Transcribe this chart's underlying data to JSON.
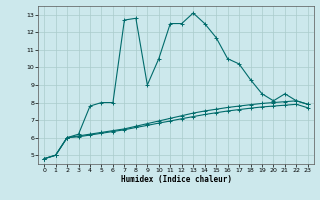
{
  "title": "",
  "xlabel": "Humidex (Indice chaleur)",
  "ylabel": "",
  "bg_color": "#cce8ec",
  "grid_color": "#aacccc",
  "line_color": "#006b6b",
  "xlim": [
    -0.5,
    23.5
  ],
  "ylim": [
    4.5,
    13.5
  ],
  "xticks": [
    0,
    1,
    2,
    3,
    4,
    5,
    6,
    7,
    8,
    9,
    10,
    11,
    12,
    13,
    14,
    15,
    16,
    17,
    18,
    19,
    20,
    21,
    22,
    23
  ],
  "yticks": [
    5,
    6,
    7,
    8,
    9,
    10,
    11,
    12,
    13
  ],
  "line1_x": [
    0,
    1,
    2,
    3,
    4,
    5,
    6,
    7,
    8,
    9,
    10,
    11,
    12,
    13,
    14,
    15,
    16,
    17,
    18,
    19,
    20,
    21,
    22,
    23
  ],
  "line1_y": [
    4.8,
    5.0,
    6.0,
    6.2,
    7.8,
    8.0,
    8.0,
    12.7,
    12.8,
    9.0,
    10.5,
    12.5,
    12.5,
    13.1,
    12.5,
    11.7,
    10.5,
    10.2,
    9.3,
    8.5,
    8.1,
    8.5,
    8.1,
    7.9
  ],
  "line2_x": [
    0,
    1,
    2,
    3,
    4,
    5,
    6,
    7,
    8,
    9,
    10,
    11,
    12,
    13,
    14,
    15,
    16,
    17,
    18,
    19,
    20,
    21,
    22,
    23
  ],
  "line2_y": [
    4.8,
    5.0,
    6.0,
    6.1,
    6.2,
    6.3,
    6.4,
    6.5,
    6.65,
    6.8,
    6.95,
    7.1,
    7.25,
    7.4,
    7.52,
    7.62,
    7.72,
    7.8,
    7.88,
    7.95,
    8.0,
    8.05,
    8.1,
    7.9
  ],
  "line3_x": [
    0,
    1,
    2,
    3,
    4,
    5,
    6,
    7,
    8,
    9,
    10,
    11,
    12,
    13,
    14,
    15,
    16,
    17,
    18,
    19,
    20,
    21,
    22,
    23
  ],
  "line3_y": [
    4.8,
    5.0,
    6.0,
    6.05,
    6.15,
    6.25,
    6.35,
    6.45,
    6.58,
    6.7,
    6.83,
    6.95,
    7.08,
    7.2,
    7.32,
    7.42,
    7.52,
    7.6,
    7.68,
    7.75,
    7.8,
    7.85,
    7.9,
    7.7
  ]
}
